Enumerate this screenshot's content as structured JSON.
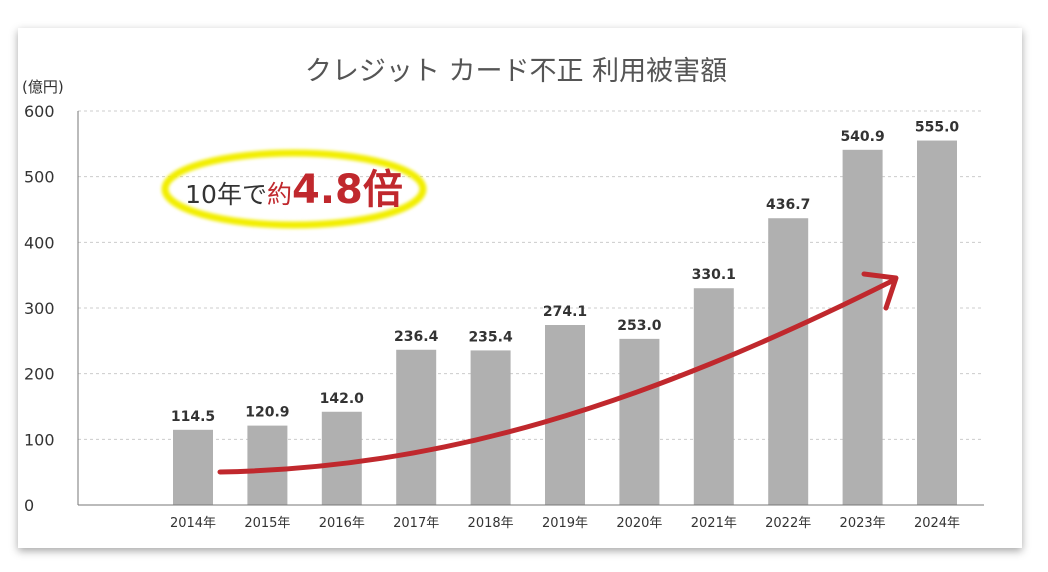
{
  "chart_data": {
    "type": "bar",
    "title": "クレジット カード不正 利用被害額",
    "ylabel": "(億円)",
    "xlabel": "",
    "ylim": [
      0,
      600
    ],
    "yticks": [
      0,
      100,
      200,
      300,
      400,
      500,
      600
    ],
    "categories": [
      "2014年",
      "2015年",
      "2016年",
      "2017年",
      "2018年",
      "2019年",
      "2020年",
      "2021年",
      "2022年",
      "2023年",
      "2024年"
    ],
    "values": [
      114.5,
      120.9,
      142.0,
      236.4,
      235.4,
      274.1,
      253.0,
      330.1,
      436.7,
      540.9,
      555.0
    ],
    "value_labels": [
      "114.5",
      "120.9",
      "142.0",
      "236.4",
      "235.4",
      "274.1",
      "253.0",
      "330.1",
      "436.7",
      "540.9",
      "555.0"
    ],
    "grid": "horizontal dashed",
    "bar_color": "#b0b0b0",
    "trend_arrow_color": "#c0282d",
    "annotation": {
      "prefix": "10年で",
      "about": "約",
      "multiplier": "4.8倍",
      "ellipse_color": "#f2ee00"
    }
  }
}
